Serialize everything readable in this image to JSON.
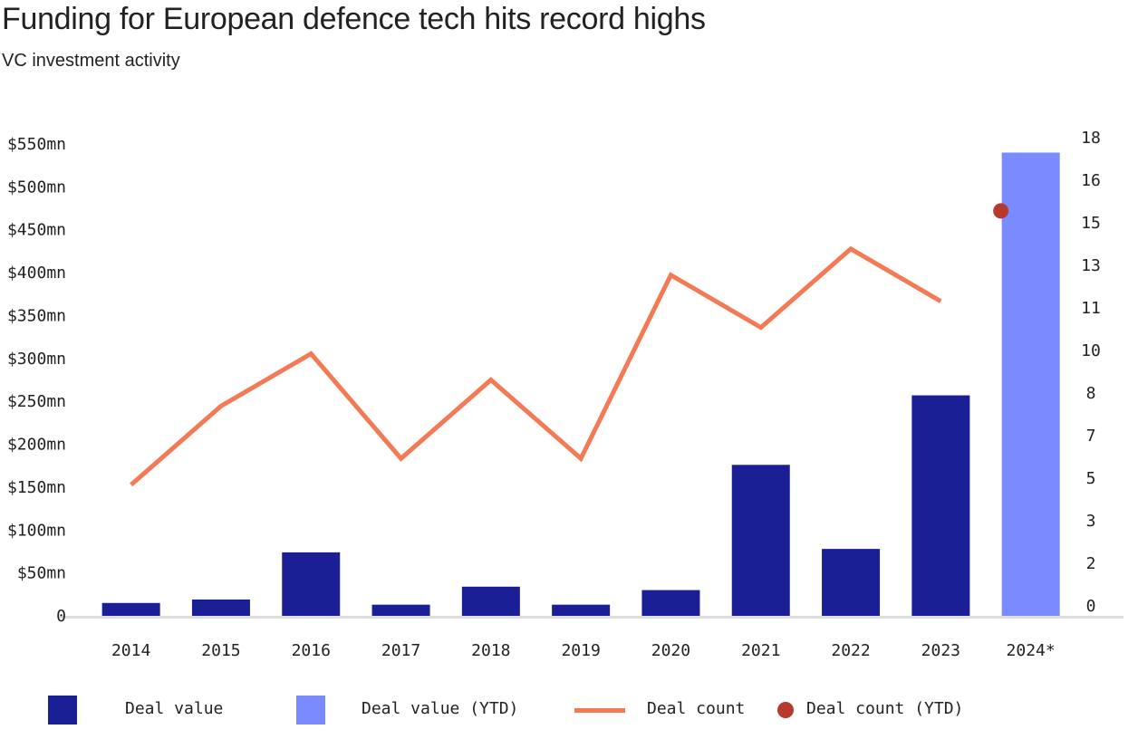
{
  "header": {
    "title": "Funding for European defence tech hits record highs",
    "subtitle": "VC investment activity"
  },
  "colors": {
    "deal_value": "#1a1f96",
    "deal_value_ytd": "#7a8bff",
    "deal_count": "#f47a55",
    "deal_count_ytd": "#b83a2e",
    "axis": "#dddddd"
  },
  "legend": {
    "deal_value": "Deal value",
    "deal_value_ytd": "Deal value (YTD)",
    "deal_count": "Deal count",
    "deal_count_ytd": "Deal count (YTD)"
  },
  "chart_data": {
    "type": "bar",
    "categories": [
      "2014",
      "2015",
      "2016",
      "2017",
      "2018",
      "2019",
      "2020",
      "2021",
      "2022",
      "2023",
      "2024*"
    ],
    "series": [
      {
        "name": "Deal value",
        "axis": "left",
        "kind": "bar",
        "values": [
          15,
          19,
          74,
          13,
          34,
          13,
          30,
          176,
          78,
          257,
          null
        ]
      },
      {
        "name": "Deal value (YTD)",
        "axis": "left",
        "kind": "bar",
        "values": [
          null,
          null,
          null,
          null,
          null,
          null,
          null,
          null,
          null,
          null,
          540
        ]
      },
      {
        "name": "Deal count",
        "axis": "right",
        "kind": "line",
        "values": [
          5,
          8,
          10,
          6,
          9,
          6,
          13,
          11,
          14,
          12,
          null
        ]
      },
      {
        "name": "Deal count (YTD)",
        "axis": "right",
        "kind": "point",
        "values": [
          null,
          null,
          null,
          null,
          null,
          null,
          null,
          null,
          null,
          null,
          16
        ]
      }
    ],
    "y_left": {
      "range": [
        0,
        550
      ],
      "ticks": [
        0,
        50,
        100,
        150,
        200,
        250,
        300,
        350,
        400,
        450,
        500,
        550
      ],
      "tick_labels": [
        "0",
        "$50mn",
        "$100mn",
        "$150mn",
        "$200mn",
        "$250mn",
        "$300mn",
        "$350mn",
        "$400mn",
        "$450mn",
        "$500mn",
        "$550mn"
      ]
    },
    "y_right": {
      "range": [
        0,
        18
      ],
      "tick_labels": [
        "0",
        "2",
        "3",
        "5",
        "7",
        "8",
        "10",
        "11",
        "13",
        "15",
        "16",
        "18"
      ]
    },
    "title": "Funding for European defence tech hits record highs",
    "xlabel": "",
    "ylabel": "",
    "grid": false,
    "legend_position": "bottom"
  }
}
